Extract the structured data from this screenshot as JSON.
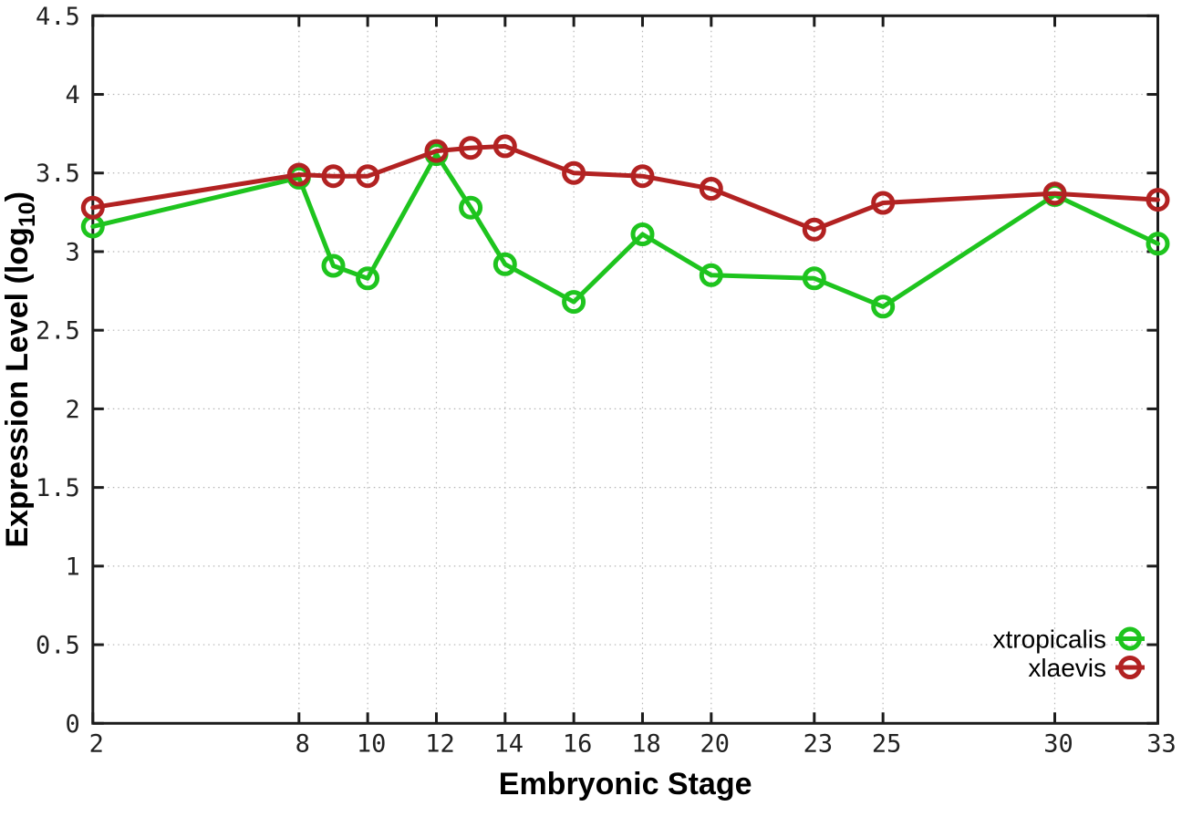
{
  "chart_data": {
    "type": "line",
    "title": "",
    "xlabel": "Embryonic Stage",
    "ylabel": "Expression Level (log10)",
    "ylabel_parts": {
      "main": "Expression Level (log",
      "sub": "10",
      "close": ")"
    },
    "x": [
      2,
      8,
      9,
      10,
      12,
      13,
      14,
      16,
      18,
      20,
      23,
      25,
      30,
      33
    ],
    "series": [
      {
        "name": "xtropicalis",
        "color": "#1ec41e",
        "values": [
          3.16,
          3.47,
          2.91,
          2.83,
          3.62,
          3.28,
          2.92,
          2.68,
          3.11,
          2.85,
          2.83,
          2.65,
          3.36,
          3.05
        ]
      },
      {
        "name": "xlaevis",
        "color": "#b22222",
        "values": [
          3.28,
          3.49,
          3.48,
          3.48,
          3.64,
          3.66,
          3.67,
          3.5,
          3.48,
          3.4,
          3.14,
          3.31,
          3.37,
          3.33
        ]
      }
    ],
    "xticks": {
      "values": [
        2,
        8,
        10,
        12,
        14,
        16,
        18,
        20,
        23,
        25,
        30,
        33
      ],
      "labels": [
        "2",
        "8",
        "10",
        "12",
        "14",
        "16",
        "18",
        "20",
        "23",
        "25",
        "30",
        "33"
      ]
    },
    "yticks": {
      "values": [
        0,
        0.5,
        1,
        1.5,
        2,
        2.5,
        3,
        3.5,
        4,
        4.5
      ],
      "labels": [
        "0",
        "0.5",
        "1",
        "1.5",
        "2",
        "2.5",
        "3",
        "3.5",
        "4",
        "4.5"
      ]
    },
    "xlim": [
      2,
      33
    ],
    "ylim": [
      0,
      4.5
    ],
    "grid": true,
    "legend_position": "bottom-right",
    "legend": [
      "xtropicalis",
      "xlaevis"
    ],
    "marker": "open-circle",
    "axis_color": "#1c1c1c",
    "grid_color": "#b5b5b5",
    "background": "#ffffff"
  }
}
